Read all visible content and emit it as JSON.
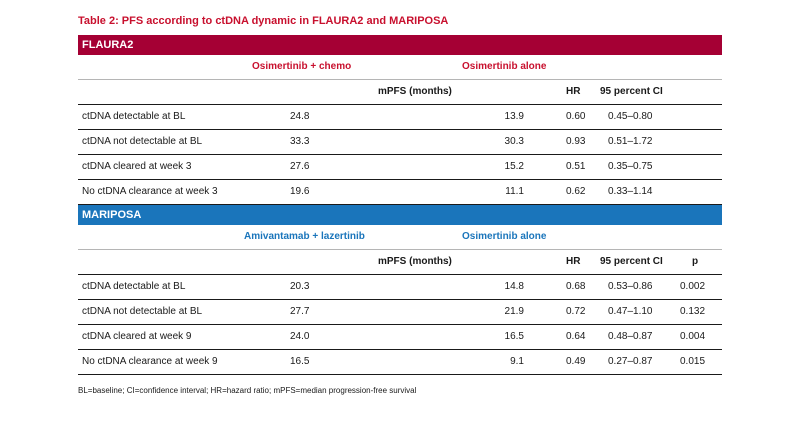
{
  "title": "Table 2: PFS according to ctDNA dynamic in FLAURA2 and MARIPOSA",
  "headers": {
    "mpfs": "mPFS (months)",
    "hr": "HR",
    "ci": "95 percent CI",
    "p": "p"
  },
  "flaura2": {
    "name": "FLAURA2",
    "arm1": "Osimertinib + chemo",
    "arm2": "Osimertinib alone",
    "rows": [
      {
        "label": "ctDNA detectable at BL",
        "a": "24.8",
        "b": "13.9",
        "hr": "0.60",
        "ci": "0.45–0.80"
      },
      {
        "label": "ctDNA not detectable at BL",
        "a": "33.3",
        "b": "30.3",
        "hr": "0.93",
        "ci": "0.51–1.72"
      },
      {
        "label": "ctDNA cleared at week 3",
        "a": "27.6",
        "b": "15.2",
        "hr": "0.51",
        "ci": "0.35–0.75"
      },
      {
        "label": "No ctDNA clearance at week 3",
        "a": "19.6",
        "b": "11.1",
        "hr": "0.62",
        "ci": "0.33–1.14"
      }
    ]
  },
  "mariposa": {
    "name": "MARIPOSA",
    "arm1": "Amivantamab + lazertinib",
    "arm2": "Osimertinib alone",
    "rows": [
      {
        "label": "ctDNA detectable at BL",
        "a": "20.3",
        "b": "14.8",
        "hr": "0.68",
        "ci": "0.53–0.86",
        "p": "0.002"
      },
      {
        "label": "ctDNA not detectable at BL",
        "a": "27.7",
        "b": "21.9",
        "hr": "0.72",
        "ci": "0.47–1.10",
        "p": "0.132"
      },
      {
        "label": "ctDNA cleared at week 9",
        "a": "24.0",
        "b": "16.5",
        "hr": "0.64",
        "ci": "0.48–0.87",
        "p": "0.004"
      },
      {
        "label": "No ctDNA clearance at week 9",
        "a": "16.5",
        "b": "9.1",
        "hr": "0.49",
        "ci": "0.27–0.87",
        "p": "0.015"
      }
    ]
  },
  "footnote": "BL=baseline; CI=confidence interval; HR=hazard ratio; mPFS=median progression-free survival",
  "colors": {
    "title": "#c8102e",
    "flaura2_band": "#a50034",
    "mariposa_band": "#1a75bb"
  }
}
